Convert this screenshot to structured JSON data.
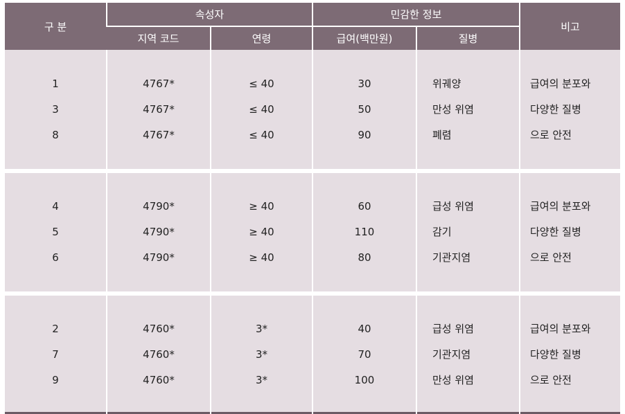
{
  "header": {
    "gubun": "구 분",
    "attr_group": "속성자",
    "sensitive_group": "민감한 정보",
    "remark": "비고",
    "region_code": "지역 코드",
    "age": "연령",
    "salary": "급여(백만원)",
    "disease": "질병"
  },
  "groups": [
    {
      "ids": [
        "1",
        "3",
        "8"
      ],
      "region": [
        "4767*",
        "4767*",
        "4767*"
      ],
      "age": [
        "≤ 40",
        "≤ 40",
        "≤ 40"
      ],
      "salary": [
        "30",
        "50",
        "90"
      ],
      "disease": [
        "위궤양",
        "만성 위염",
        "폐렴"
      ],
      "remark": [
        "급여의 분포와",
        "다양한 질병",
        "으로 안전"
      ]
    },
    {
      "ids": [
        "4",
        "5",
        "6"
      ],
      "region": [
        "4790*",
        "4790*",
        "4790*"
      ],
      "age": [
        "≥ 40",
        "≥ 40",
        "≥ 40"
      ],
      "salary": [
        "60",
        "110",
        "80"
      ],
      "disease": [
        "급성 위염",
        "감기",
        "기관지염"
      ],
      "remark": [
        "급여의 분포와",
        "다양한 질병",
        "으로 안전"
      ]
    },
    {
      "ids": [
        "2",
        "7",
        "9"
      ],
      "region": [
        "4760*",
        "4760*",
        "4760*"
      ],
      "age": [
        "3*",
        "3*",
        "3*"
      ],
      "salary": [
        "40",
        "70",
        "100"
      ],
      "disease": [
        "급성 위염",
        "기관지염",
        "만성 위염"
      ],
      "remark": [
        "급여의 분포와",
        "다양한 질병",
        "으로 안전"
      ]
    }
  ]
}
